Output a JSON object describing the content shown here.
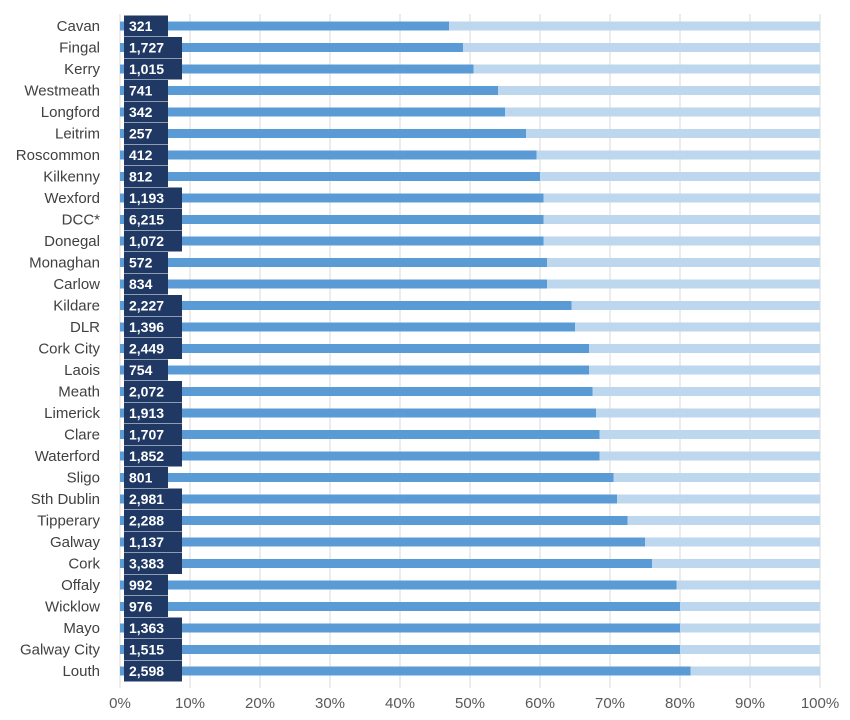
{
  "chart_data": {
    "type": "bar",
    "orientation": "horizontal",
    "stacked_percent": true,
    "categories": [
      "Cavan",
      "Fingal",
      "Kerry",
      "Westmeath",
      "Longford",
      "Leitrim",
      "Roscommon",
      "Kilkenny",
      "Wexford",
      "DCC*",
      "Donegal",
      "Monaghan",
      "Carlow",
      "Kildare",
      "DLR",
      "Cork City",
      "Laois",
      "Meath",
      "Limerick",
      "Clare",
      "Waterford",
      "Sligo",
      "Sth Dublin",
      "Tipperary",
      "Galway",
      "Cork",
      "Offaly",
      "Wicklow",
      "Mayo",
      "Galway City",
      "Louth"
    ],
    "values": [
      47,
      49,
      50.5,
      54,
      55,
      58,
      59.5,
      60,
      60.5,
      60.5,
      60.5,
      61,
      61,
      64.5,
      65,
      67,
      67,
      67.5,
      68,
      68.5,
      68.5,
      70.5,
      71,
      72.5,
      75,
      76,
      79.5,
      80,
      80,
      80,
      81.5
    ],
    "remainder_to": 100,
    "counts": [
      "321",
      "1,727",
      "1,015",
      "741",
      "342",
      "257",
      "412",
      "812",
      "1,193",
      "6,215",
      "1,072",
      "572",
      "834",
      "2,227",
      "1,396",
      "2,449",
      "754",
      "2,072",
      "1,913",
      "1,707",
      "1,852",
      "801",
      "2,981",
      "2,288",
      "1,137",
      "3,383",
      "992",
      "976",
      "1,363",
      "1,515",
      "2,598"
    ],
    "xticks": [
      "0%",
      "10%",
      "20%",
      "30%",
      "40%",
      "50%",
      "60%",
      "70%",
      "80%",
      "90%",
      "100%"
    ],
    "xlim": [
      0,
      100
    ],
    "grid": true,
    "colors": {
      "bar": "#5b9bd5",
      "remainder": "#bdd7ee",
      "count_box": "#1f3864",
      "grid": "#d9d9d9"
    }
  }
}
